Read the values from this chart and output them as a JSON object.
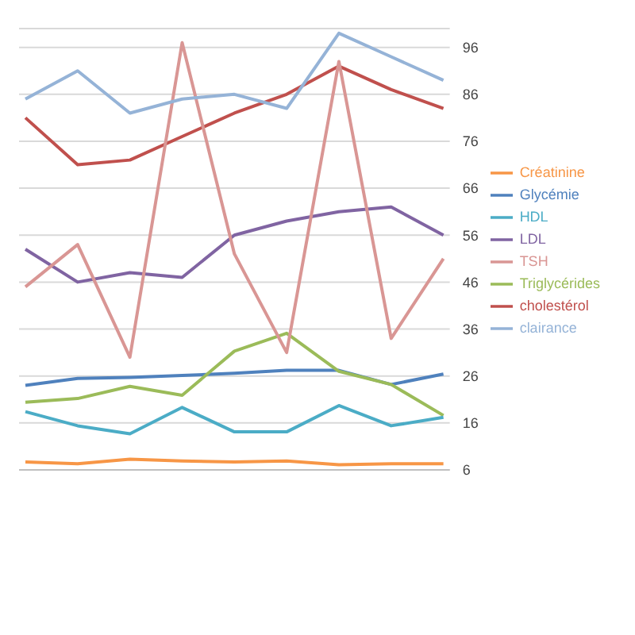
{
  "chart_data": {
    "type": "line",
    "categories": [
      null,
      null,
      null,
      null,
      null,
      null,
      null,
      null,
      null
    ],
    "series": [
      {
        "name": "Glycémie",
        "color": "#4f81bd",
        "values": [
          24,
          25.5,
          25.7,
          26.1,
          26.6,
          27.2,
          27.2,
          24.2,
          26.4
        ]
      },
      {
        "name": "cholestérol",
        "color": "#c0504d",
        "values": [
          81,
          71,
          72,
          77,
          82,
          86,
          92,
          87,
          83
        ]
      },
      {
        "name": "Triglycérides",
        "color": "#9bbb59",
        "values": [
          20.4,
          21.2,
          23.8,
          21.9,
          31.3,
          35.1,
          27,
          24.2,
          17.6
        ]
      },
      {
        "name": "LDL",
        "color": "#8064a2",
        "values": [
          53,
          46,
          48,
          47,
          56,
          59,
          61,
          62,
          56
        ]
      },
      {
        "name": "HDL",
        "color": "#4bacc6",
        "values": [
          18.4,
          15.4,
          13.7,
          19.3,
          14.1,
          14.1,
          19.7,
          15.4,
          17.2
        ]
      },
      {
        "name": "TSH",
        "color": "#d99694",
        "values": [
          45,
          54,
          30,
          97,
          52,
          31,
          93,
          34,
          51
        ]
      },
      {
        "name": "Créatinine",
        "color": "#f79646",
        "values": [
          7.7,
          7.3,
          8.3,
          7.9,
          7.7,
          7.9,
          7.1,
          7.3,
          7.3
        ]
      },
      {
        "name": "clairance",
        "color": "#95b3d7",
        "values": [
          85,
          91,
          82,
          85,
          86,
          83,
          99,
          94,
          89
        ]
      }
    ],
    "ylim": [
      6,
      100
    ],
    "yticks": [
      6,
      16,
      26,
      36,
      46,
      56,
      66,
      76,
      86,
      96
    ],
    "grid": "y",
    "legend": "right",
    "marker": "none",
    "tick_labels": "y"
  }
}
